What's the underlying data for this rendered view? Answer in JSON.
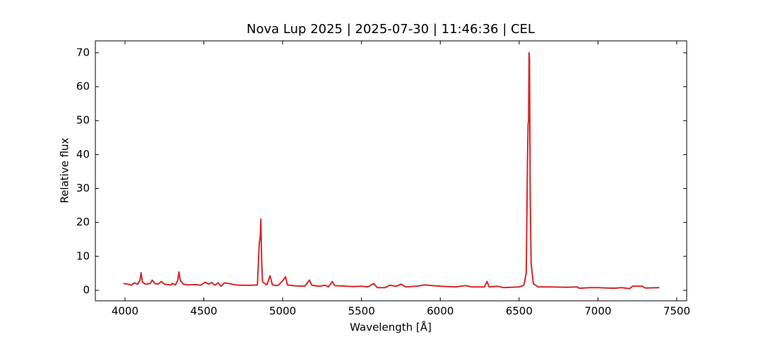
{
  "chart_data": {
    "type": "line",
    "title": "Nova Lup 2025 | 2025-07-30 | 11:46:36 | CEL",
    "xlabel": "Wavelength [Å]",
    "ylabel": "Relative flux",
    "x": [
      3990,
      4020,
      4040,
      4060,
      4080,
      4095,
      4102,
      4110,
      4130,
      4160,
      4172,
      4190,
      4210,
      4230,
      4250,
      4290,
      4300,
      4320,
      4335,
      4342,
      4350,
      4370,
      4400,
      4450,
      4480,
      4510,
      4530,
      4550,
      4570,
      4590,
      4610,
      4630,
      4660,
      4700,
      4750,
      4800,
      4840,
      4852,
      4858,
      4862,
      4866,
      4872,
      4900,
      4920,
      4935,
      4970,
      5000,
      5018,
      5030,
      5080,
      5140,
      5170,
      5185,
      5230,
      5270,
      5290,
      5315,
      5330,
      5400,
      5450,
      5500,
      5540,
      5577,
      5600,
      5650,
      5680,
      5720,
      5750,
      5780,
      5850,
      5900,
      5950,
      6000,
      6100,
      6160,
      6200,
      6280,
      6296,
      6310,
      6364,
      6400,
      6450,
      6500,
      6530,
      6545,
      6553,
      6557,
      6560,
      6563,
      6566,
      6570,
      6576,
      6590,
      6620,
      6700,
      6800,
      6870,
      6880,
      6950,
      7000,
      7100,
      7150,
      7200,
      7220,
      7280,
      7300,
      7390
    ],
    "series": [
      {
        "name": "Nova Lup 2025",
        "color": "#d62728",
        "values": [
          2.0,
          1.8,
          1.5,
          2.2,
          1.8,
          3.0,
          5.2,
          2.5,
          1.8,
          2.0,
          3.0,
          2.0,
          1.8,
          2.6,
          1.8,
          1.6,
          2.0,
          1.6,
          3.0,
          5.4,
          3.0,
          1.8,
          1.6,
          1.7,
          1.5,
          2.4,
          1.8,
          2.3,
          1.5,
          2.2,
          1.2,
          2.2,
          2.0,
          1.6,
          1.5,
          1.5,
          1.6,
          14,
          16,
          21,
          10,
          2.5,
          1.6,
          4.3,
          1.6,
          1.4,
          2.8,
          4.0,
          1.6,
          1.3,
          1.2,
          3.0,
          1.5,
          1.2,
          1.5,
          1.0,
          2.6,
          1.4,
          1.2,
          1.1,
          1.2,
          1.0,
          2.0,
          0.8,
          0.8,
          1.5,
          1.2,
          1.8,
          1.0,
          1.2,
          1.6,
          1.4,
          1.2,
          1.0,
          1.4,
          1.0,
          1.0,
          2.6,
          1.0,
          1.2,
          0.8,
          0.9,
          1.0,
          1.5,
          5,
          38,
          49,
          50,
          70,
          68,
          30,
          8,
          2.0,
          1.0,
          1.0,
          0.9,
          1.0,
          0.6,
          0.8,
          0.8,
          0.6,
          0.8,
          0.5,
          1.2,
          1.2,
          0.7,
          0.8
        ]
      }
    ],
    "xlim": [
      3812,
      7563
    ],
    "ylim": [
      -3.1,
      73.5
    ],
    "xticks": [
      4000,
      4500,
      5000,
      5500,
      6000,
      6500,
      7000,
      7500
    ],
    "yticks": [
      0,
      10,
      20,
      30,
      40,
      50,
      60,
      70
    ]
  }
}
